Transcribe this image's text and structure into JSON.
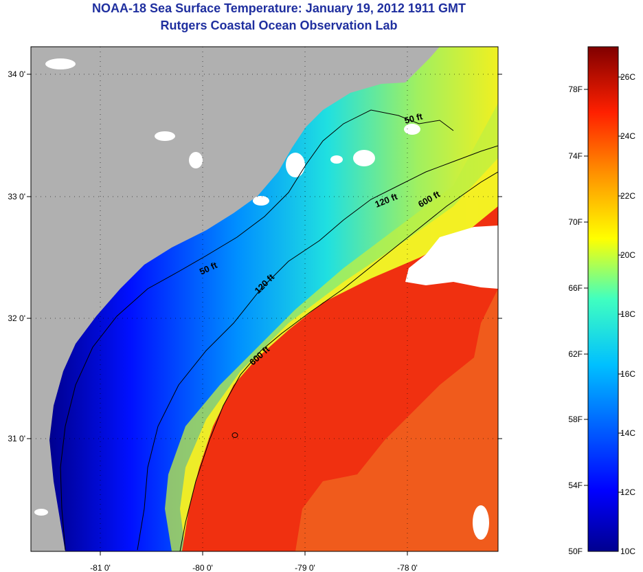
{
  "header": {
    "title": "NOAA-18 Sea Surface Temperature:  January 19, 2012 1911 GMT",
    "subtitle": "Rutgers Coastal Ocean Observation Lab"
  },
  "axes": {
    "lon_ticks": [
      "-81 0'",
      "-80 0'",
      "-79 0'",
      "-78 0'"
    ],
    "lat_ticks": [
      "34 0'",
      "33 0'",
      "32 0'",
      "31 0'"
    ]
  },
  "contours": {
    "c50_a": "50 ft",
    "c50_b": "50 ft",
    "c120_a": "120 ft",
    "c120_b": "120 ft",
    "c600_a": "600 ft",
    "c600_b": "600 ft"
  },
  "colorbar": {
    "fahrenheit": [
      "78F",
      "74F",
      "70F",
      "66F",
      "62F",
      "58F",
      "54F",
      "50F"
    ],
    "celsius": [
      "26C",
      "24C",
      "22C",
      "20C",
      "18C",
      "16C",
      "14C",
      "12C",
      "10C"
    ],
    "colors": [
      "#00008f",
      "#0000ff",
      "#0080ff",
      "#00ffff",
      "#80ff80",
      "#ffff00",
      "#ff8000",
      "#ff0000",
      "#800000"
    ]
  },
  "colors": {
    "land": "#b0b0b0",
    "title": "#1f2f9f",
    "cloud": "#ffffff"
  }
}
